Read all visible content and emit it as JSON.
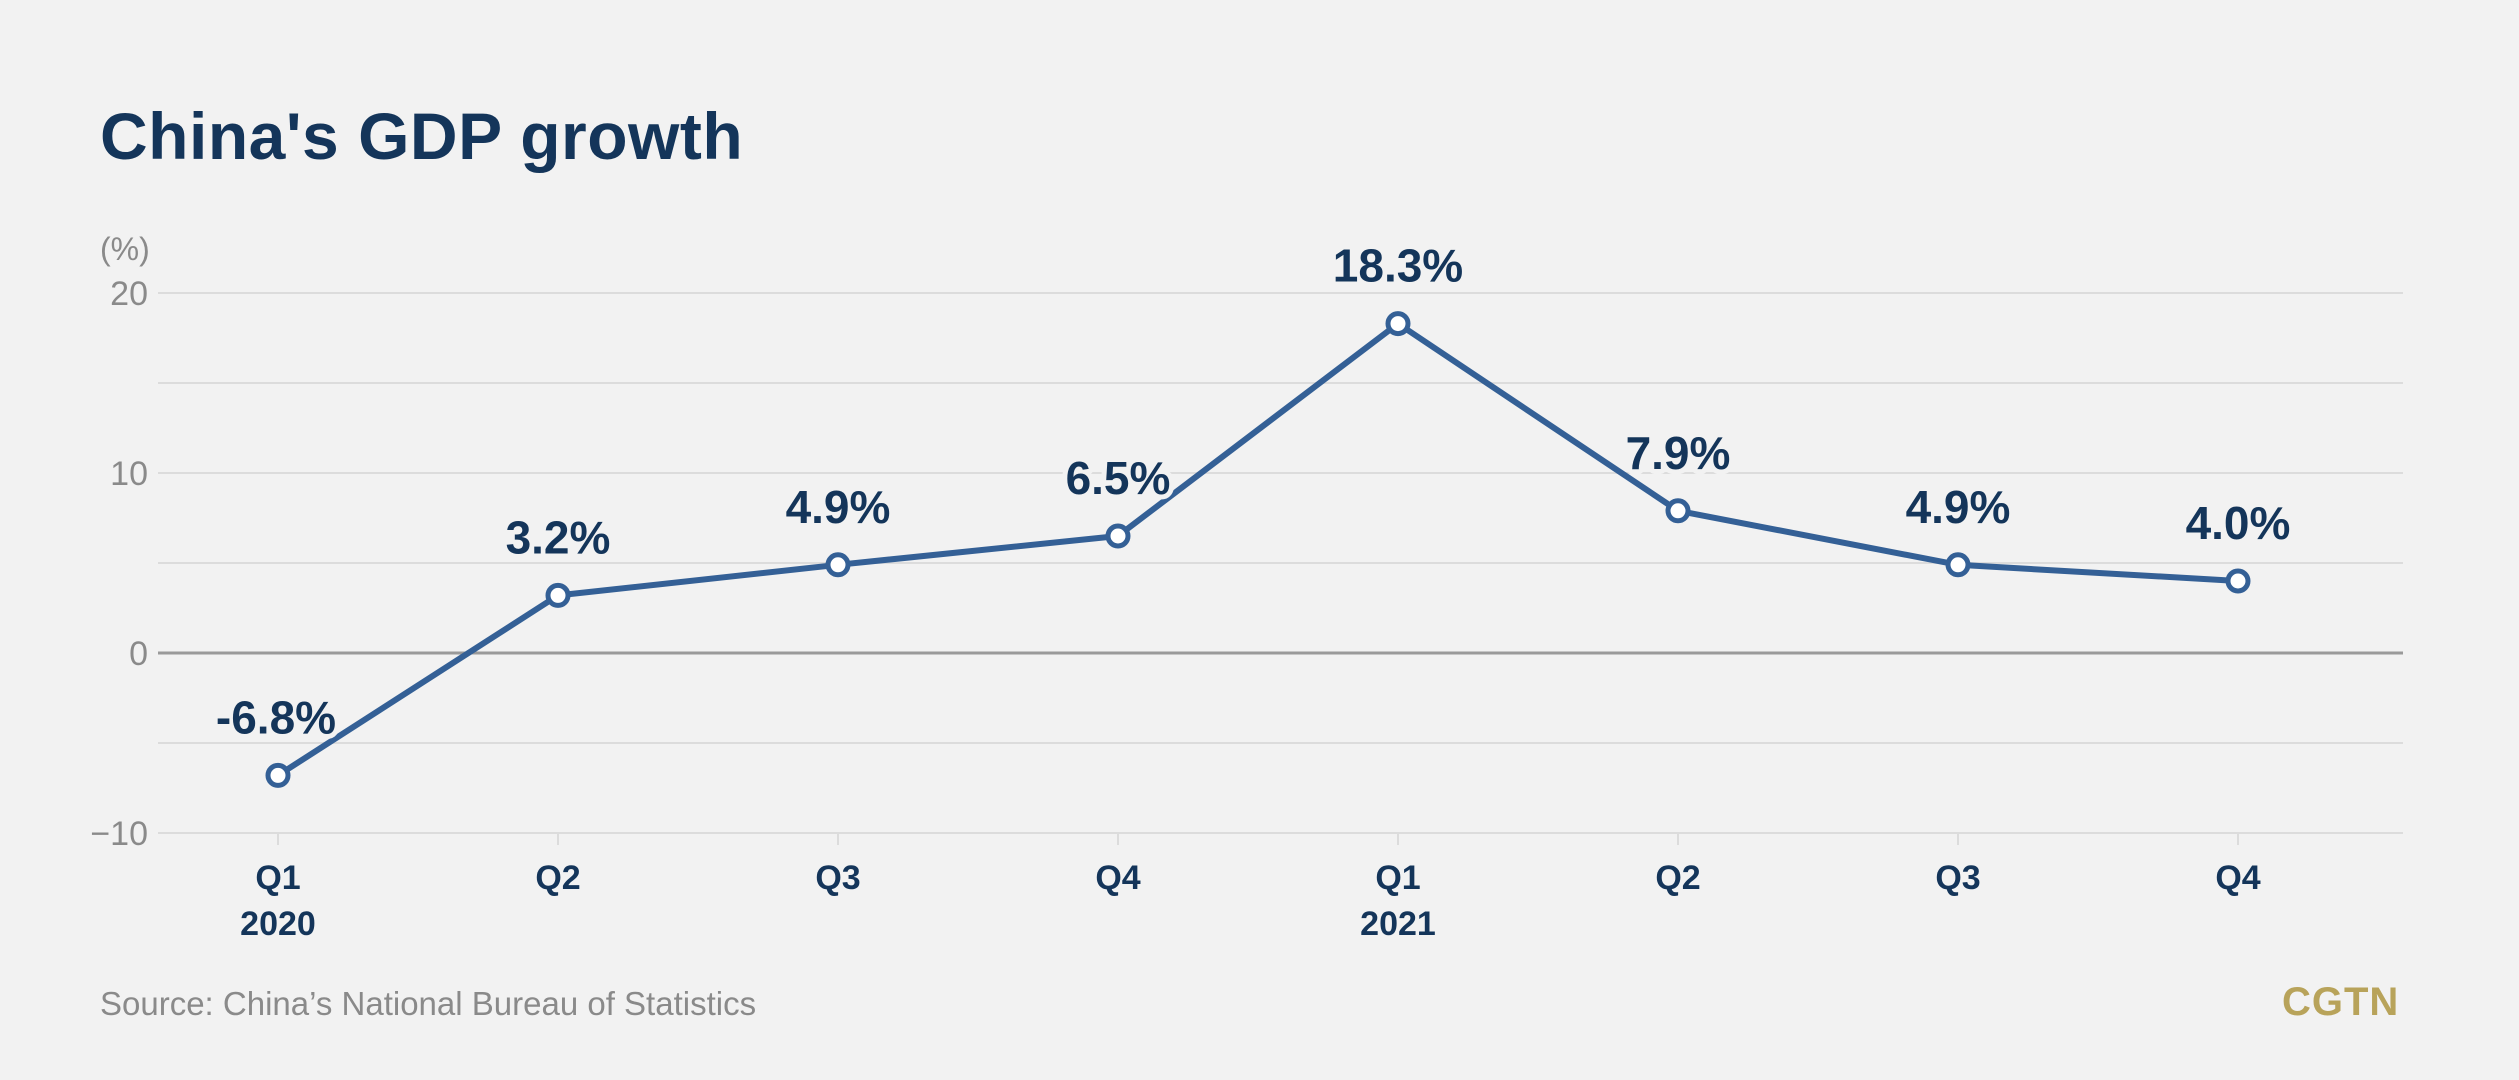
{
  "title": "China's GDP growth",
  "source": "Source: China’s National Bureau of Statistics",
  "logo": "CGTN",
  "colors": {
    "background": "#f2f2f2",
    "line": "#346096",
    "title": "#14355a",
    "gridline": "#dcdcdc",
    "zeroline": "#9a9a9a",
    "muted_text": "#8a8a8a",
    "logo": "#b8a35a"
  },
  "chart_data": {
    "type": "line",
    "title": "China's GDP growth",
    "ylabel": "(%)",
    "xlabel": "",
    "ylim": [
      -10,
      20
    ],
    "yticks": [
      20,
      10,
      0,
      -10
    ],
    "ygrid_minor": [
      15,
      5,
      -5
    ],
    "grid": true,
    "categories": [
      "Q1",
      "Q2",
      "Q3",
      "Q4",
      "Q1",
      "Q2",
      "Q3",
      "Q4"
    ],
    "year_labels": [
      "2020",
      "",
      "",
      "",
      "2021",
      "",
      "",
      ""
    ],
    "values": [
      -6.8,
      3.2,
      4.9,
      6.5,
      18.3,
      7.9,
      4.9,
      4.0
    ],
    "data_labels": [
      "-6.8%",
      "3.2%",
      "4.9%",
      "6.5%",
      "18.3%",
      "7.9%",
      "4.9%",
      "4.0%"
    ]
  }
}
